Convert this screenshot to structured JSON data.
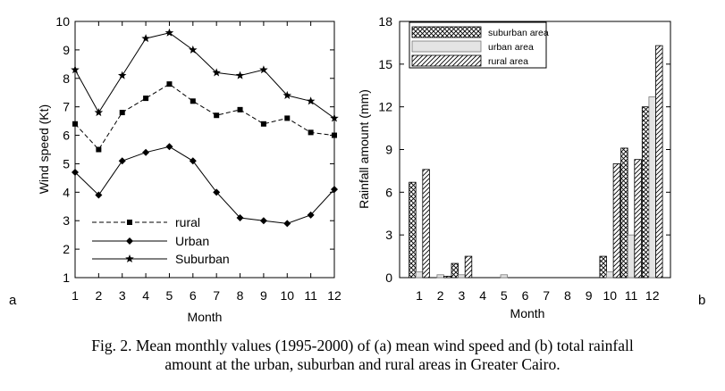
{
  "figure": {
    "panel_a_label": "a",
    "panel_b_label": "b",
    "caption_line1": "Fig. 2. Mean monthly values (1995-2000) of (a) mean wind speed and (b) total rainfall",
    "caption_line2": "amount at the urban, suburban and rural areas in Greater Cairo."
  },
  "chart_data": [
    {
      "type": "line",
      "title": "",
      "xlabel": "Month",
      "ylabel": "Wind speed (Kt)",
      "x": [
        1,
        2,
        3,
        4,
        5,
        6,
        7,
        8,
        9,
        10,
        11,
        12
      ],
      "xlim": [
        1,
        12
      ],
      "ylim": [
        1,
        10
      ],
      "yticks": [
        1,
        2,
        3,
        4,
        5,
        6,
        7,
        8,
        9,
        10
      ],
      "grid": false,
      "legend_position": "bottom-left",
      "series": [
        {
          "name": "rural",
          "line": "dashed",
          "marker": "square",
          "values": [
            6.4,
            5.5,
            6.8,
            7.3,
            7.8,
            7.2,
            6.7,
            6.9,
            6.4,
            6.6,
            6.1,
            6.0
          ]
        },
        {
          "name": "Urban",
          "line": "solid",
          "marker": "diamond",
          "values": [
            4.7,
            3.9,
            5.1,
            5.4,
            5.6,
            5.1,
            4.0,
            3.1,
            3.0,
            2.9,
            3.2,
            4.1
          ]
        },
        {
          "name": "Suburban",
          "line": "solid",
          "marker": "star",
          "values": [
            8.3,
            6.8,
            8.1,
            9.4,
            9.6,
            9.0,
            8.2,
            8.1,
            8.3,
            7.4,
            7.2,
            6.6
          ]
        }
      ]
    },
    {
      "type": "bar",
      "title": "",
      "xlabel": "Month",
      "ylabel": "Rainfall amount (mm)",
      "categories": [
        "1",
        "2",
        "3",
        "4",
        "5",
        "6",
        "7",
        "8",
        "9",
        "10",
        "11",
        "12"
      ],
      "ylim": [
        0,
        18
      ],
      "yticks": [
        0,
        3,
        6,
        9,
        12,
        15,
        18
      ],
      "grid": false,
      "legend_position": "top-left",
      "series": [
        {
          "name": "suburban area",
          "pattern": "crosshatch",
          "values": [
            6.7,
            0.0,
            1.0,
            0.0,
            0.0,
            0.0,
            0.0,
            0.0,
            0.0,
            1.5,
            9.1,
            12.0
          ]
        },
        {
          "name": "urban area",
          "pattern": "light-gray",
          "values": [
            0.4,
            0.2,
            0.2,
            0.0,
            0.2,
            0.0,
            0.0,
            0.0,
            0.0,
            0.4,
            3.0,
            12.7
          ]
        },
        {
          "name": "rural area",
          "pattern": "diagonal",
          "values": [
            7.6,
            0.1,
            1.5,
            0.0,
            0.0,
            0.0,
            0.0,
            0.0,
            0.0,
            8.0,
            8.3,
            16.3
          ]
        }
      ]
    }
  ]
}
